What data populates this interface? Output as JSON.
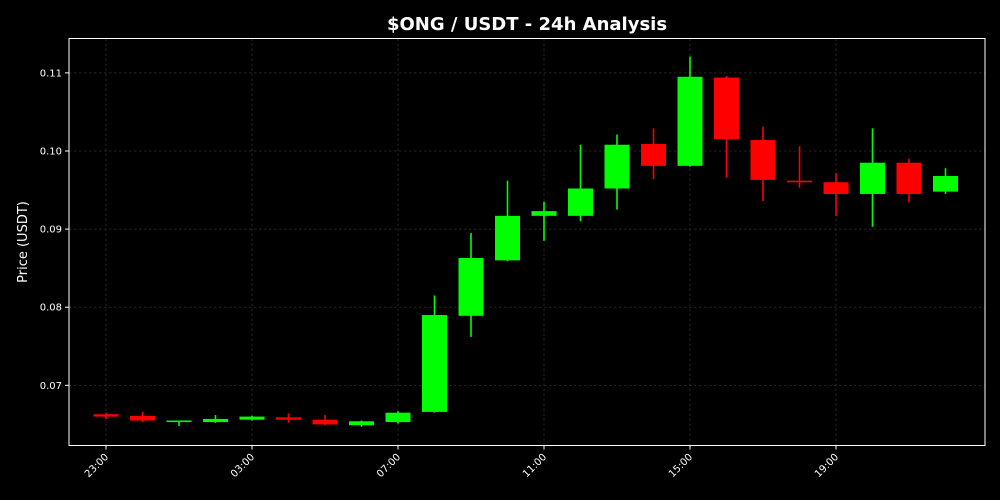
{
  "chart_data": {
    "type": "candlestick",
    "title": "$ONG / USDT - 24h Analysis",
    "xlabel": "",
    "ylabel": "Price (USDT)",
    "ylim": [
      0.0623,
      0.1144
    ],
    "yticks": [
      "0.07",
      "0.08",
      "0.09",
      "0.10",
      "0.11"
    ],
    "xticks": [
      "23:00",
      "03:00",
      "07:00",
      "11:00",
      "15:00",
      "19:00"
    ],
    "grid": true,
    "colors": {
      "up": "#00ff00",
      "down": "#ff0000",
      "background": "#000000",
      "text": "#ffffff"
    },
    "candles": [
      {
        "time": "23:00",
        "open": 0.0663,
        "high": 0.0665,
        "low": 0.0657,
        "close": 0.066
      },
      {
        "time": "00:00",
        "open": 0.0661,
        "high": 0.0666,
        "low": 0.0653,
        "close": 0.0655
      },
      {
        "time": "01:00",
        "open": 0.0654,
        "high": 0.0655,
        "low": 0.0648,
        "close": 0.0655
      },
      {
        "time": "02:00",
        "open": 0.0653,
        "high": 0.0662,
        "low": 0.0652,
        "close": 0.0657
      },
      {
        "time": "03:00",
        "open": 0.0656,
        "high": 0.0661,
        "low": 0.0655,
        "close": 0.066
      },
      {
        "time": "04:00",
        "open": 0.0659,
        "high": 0.0664,
        "low": 0.0652,
        "close": 0.0656
      },
      {
        "time": "05:00",
        "open": 0.0656,
        "high": 0.0662,
        "low": 0.0649,
        "close": 0.065
      },
      {
        "time": "06:00",
        "open": 0.0649,
        "high": 0.0655,
        "low": 0.0647,
        "close": 0.0654
      },
      {
        "time": "07:00",
        "open": 0.0653,
        "high": 0.0667,
        "low": 0.0651,
        "close": 0.0665
      },
      {
        "time": "08:00",
        "open": 0.0666,
        "high": 0.0815,
        "low": 0.0665,
        "close": 0.079
      },
      {
        "time": "09:00",
        "open": 0.0789,
        "high": 0.0895,
        "low": 0.0762,
        "close": 0.0863
      },
      {
        "time": "10:00",
        "open": 0.086,
        "high": 0.0962,
        "low": 0.0859,
        "close": 0.0917
      },
      {
        "time": "11:00",
        "open": 0.0917,
        "high": 0.0935,
        "low": 0.0885,
        "close": 0.0923
      },
      {
        "time": "12:00",
        "open": 0.0917,
        "high": 0.1008,
        "low": 0.091,
        "close": 0.0952
      },
      {
        "time": "13:00",
        "open": 0.0952,
        "high": 0.1021,
        "low": 0.0925,
        "close": 0.1008
      },
      {
        "time": "14:00",
        "open": 0.1009,
        "high": 0.1029,
        "low": 0.0964,
        "close": 0.0981
      },
      {
        "time": "15:00",
        "open": 0.0981,
        "high": 0.1121,
        "low": 0.098,
        "close": 0.1095
      },
      {
        "time": "16:00",
        "open": 0.1094,
        "high": 0.1096,
        "low": 0.0966,
        "close": 0.1015
      },
      {
        "time": "17:00",
        "open": 0.1014,
        "high": 0.1031,
        "low": 0.0936,
        "close": 0.0963
      },
      {
        "time": "18:00",
        "open": 0.0962,
        "high": 0.1006,
        "low": 0.0953,
        "close": 0.096
      },
      {
        "time": "19:00",
        "open": 0.096,
        "high": 0.0972,
        "low": 0.0917,
        "close": 0.0945
      },
      {
        "time": "20:00",
        "open": 0.0945,
        "high": 0.1029,
        "low": 0.0903,
        "close": 0.0985
      },
      {
        "time": "21:00",
        "open": 0.0985,
        "high": 0.099,
        "low": 0.0934,
        "close": 0.0945
      },
      {
        "time": "22:00",
        "open": 0.0948,
        "high": 0.0978,
        "low": 0.0945,
        "close": 0.0968
      }
    ]
  }
}
